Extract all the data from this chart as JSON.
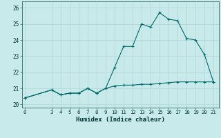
{
  "title": "",
  "xlabel": "Humidex (Indice chaleur)",
  "ylabel": "",
  "bg_color": "#c8eaea",
  "grid_color": "#b0d4d4",
  "line_color": "#006868",
  "x_values": [
    0,
    3,
    4,
    5,
    6,
    7,
    8,
    9,
    10,
    11,
    12,
    13,
    14,
    15,
    16,
    17,
    18,
    19,
    20,
    21
  ],
  "y_main": [
    20.4,
    20.9,
    20.6,
    20.7,
    20.7,
    21.0,
    20.7,
    21.0,
    22.3,
    23.6,
    23.6,
    25.0,
    24.8,
    25.7,
    25.3,
    25.2,
    24.1,
    24.0,
    23.1,
    21.4
  ],
  "y_flat": [
    20.4,
    20.9,
    20.6,
    20.7,
    20.7,
    21.0,
    20.7,
    21.0,
    21.15,
    21.2,
    21.2,
    21.25,
    21.25,
    21.3,
    21.35,
    21.4,
    21.4,
    21.4,
    21.4,
    21.4
  ],
  "ylim": [
    19.8,
    26.4
  ],
  "xlim": [
    -0.3,
    21.6
  ],
  "yticks": [
    20,
    21,
    22,
    23,
    24,
    25,
    26
  ],
  "xticks": [
    0,
    3,
    4,
    5,
    6,
    7,
    8,
    9,
    10,
    11,
    12,
    13,
    14,
    15,
    16,
    17,
    18,
    19,
    20,
    21
  ]
}
